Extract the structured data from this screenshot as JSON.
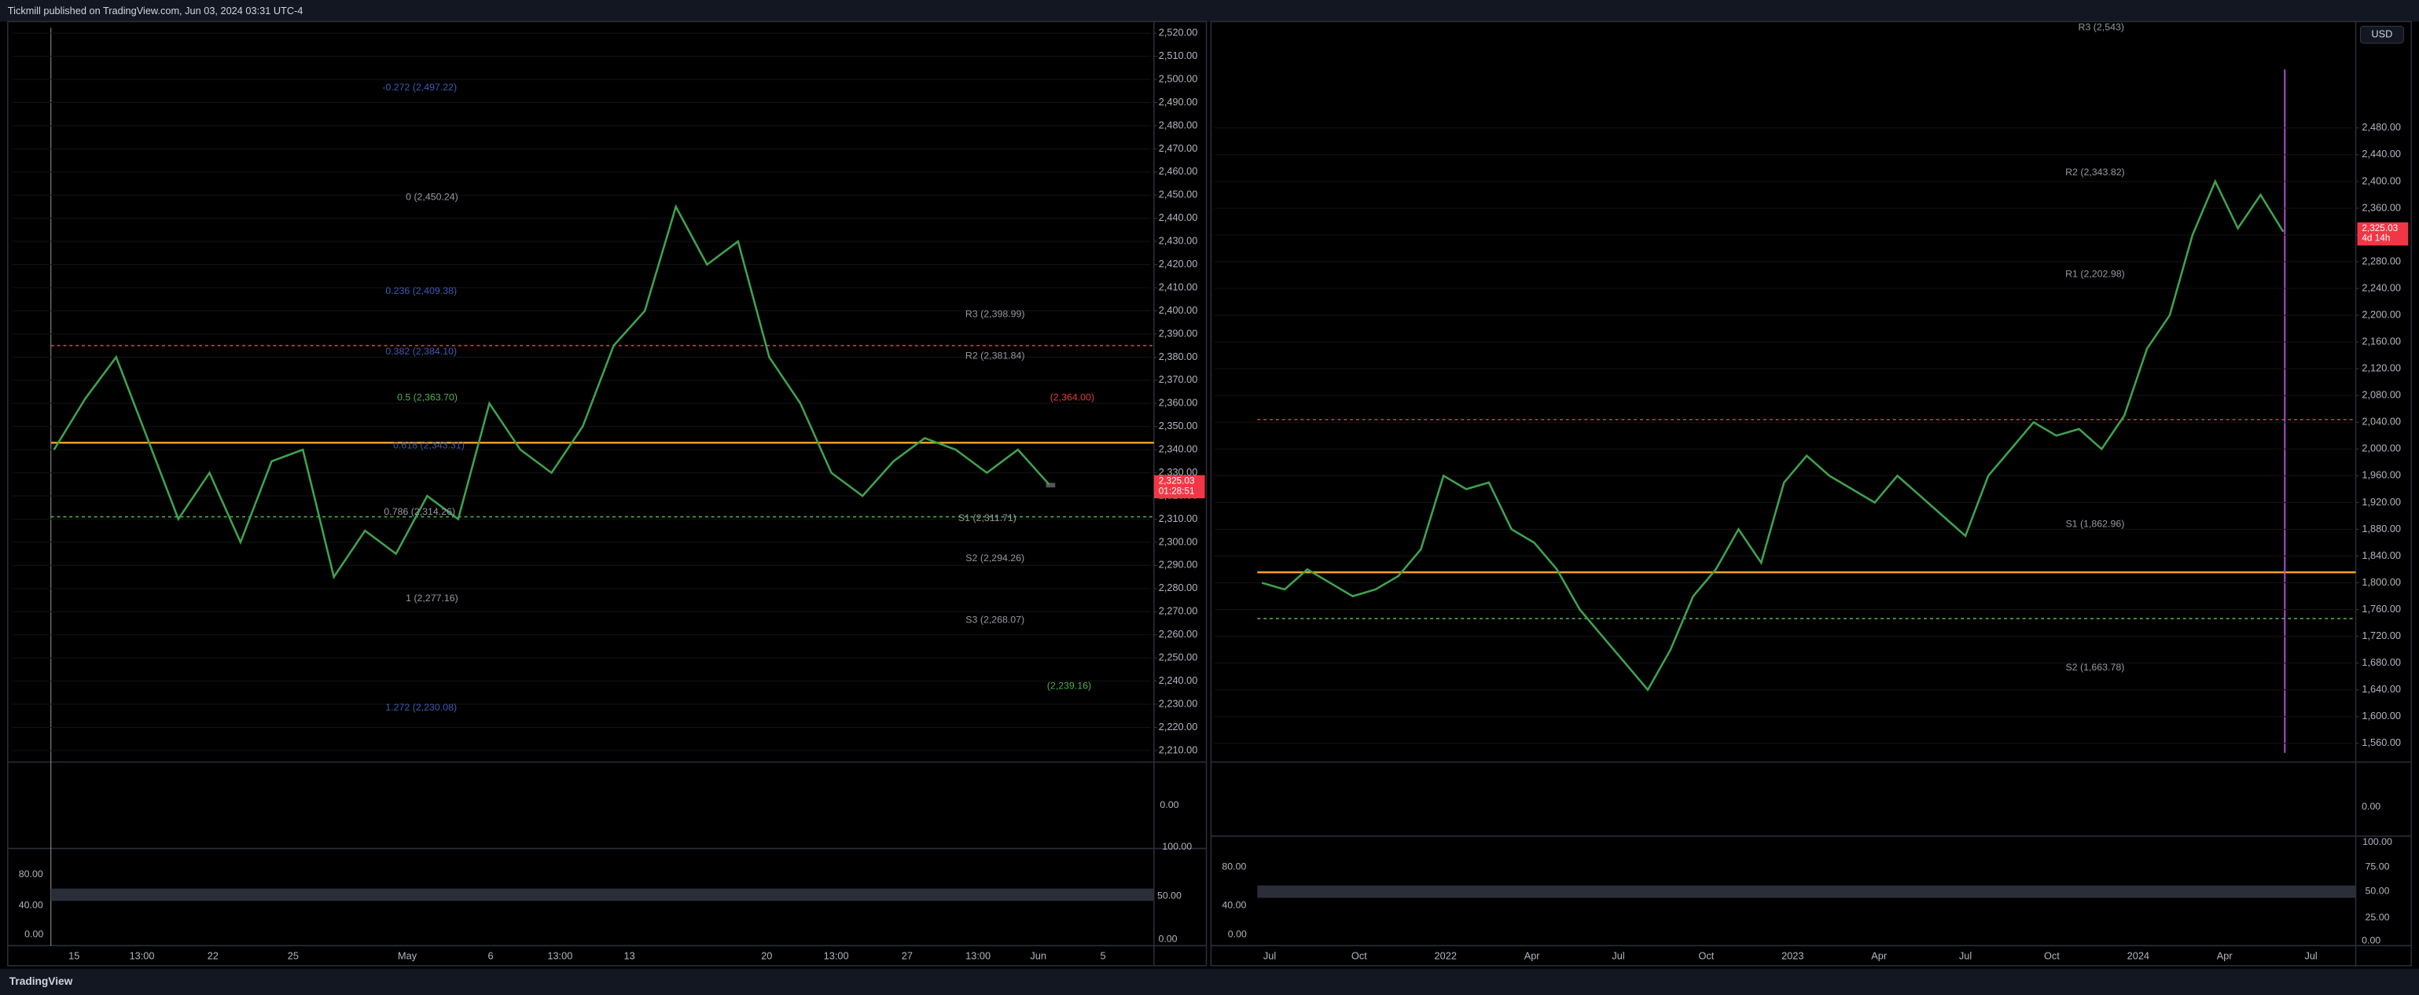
{
  "header": {
    "publisher": "Tickmill published on TradingView.com, Jun 03, 2024 03:31 UTC-4"
  },
  "footer": {
    "brand": "TradingView"
  },
  "currency": "USD",
  "chart_data": [
    {
      "type": "line",
      "color": "#3fa34d",
      "values": [
        2340,
        2362,
        2380,
        2345,
        2310,
        2330,
        2300,
        2335,
        2340,
        2285,
        2305,
        2295,
        2320,
        2310,
        2360,
        2340,
        2330,
        2350,
        2385,
        2400,
        2445,
        2420,
        2430,
        2380,
        2360,
        2330,
        2320,
        2335,
        2345,
        2340,
        2330,
        2340,
        2325
      ],
      "ylim": [
        2205,
        2525
      ],
      "yticks": [
        {
          "value": 2210,
          "label": "2,210.00"
        },
        {
          "value": 2220,
          "label": "2,220.00"
        },
        {
          "value": 2230,
          "label": "2,230.00"
        },
        {
          "value": 2240,
          "label": "2,240.00"
        },
        {
          "value": 2250,
          "label": "2,250.00"
        },
        {
          "value": 2260,
          "label": "2,260.00"
        },
        {
          "value": 2270,
          "label": "2,270.00"
        },
        {
          "value": 2280,
          "label": "2,280.00"
        },
        {
          "value": 2290,
          "label": "2,290.00"
        },
        {
          "value": 2300,
          "label": "2,300.00"
        },
        {
          "value": 2310,
          "label": "2,310.00"
        },
        {
          "value": 2320,
          "label": "2,320.00"
        },
        {
          "value": 2330,
          "label": "2,330.00"
        },
        {
          "value": 2340,
          "label": "2,340.00"
        },
        {
          "value": 2350,
          "label": "2,350.00"
        },
        {
          "value": 2360,
          "label": "2,360.00"
        },
        {
          "value": 2370,
          "label": "2,370.00"
        },
        {
          "value": 2380,
          "label": "2,380.00"
        },
        {
          "value": 2390,
          "label": "2,390.00"
        },
        {
          "value": 2400,
          "label": "2,400.00"
        },
        {
          "value": 2410,
          "label": "2,410.00"
        },
        {
          "value": 2420,
          "label": "2,420.00"
        },
        {
          "value": 2430,
          "label": "2,430.00"
        },
        {
          "value": 2440,
          "label": "2,440.00"
        },
        {
          "value": 2450,
          "label": "2,450.00"
        },
        {
          "value": 2460,
          "label": "2,460.00"
        },
        {
          "value": 2470,
          "label": "2,470.00"
        },
        {
          "value": 2480,
          "label": "2,480.00"
        },
        {
          "value": 2490,
          "label": "2,490.00"
        },
        {
          "value": 2500,
          "label": "2,500.00"
        },
        {
          "value": 2510,
          "label": "2,510.00"
        },
        {
          "value": 2520,
          "label": "2,520.00"
        }
      ],
      "time_labels": [
        "15",
        "13:00",
        "22",
        "25",
        "May",
        "6",
        "13:00",
        "13",
        "20",
        "13:00",
        "27",
        "13:00",
        "Jun",
        "5"
      ],
      "price_label": [
        "2,325.03",
        "01:28:51"
      ],
      "annotations": [
        {
          "text": "-0.272 (2,497.22)",
          "color": "#3d5bb0"
        },
        {
          "text": "0 (2,450.24)",
          "color": "#9598a1"
        },
        {
          "text": "0.236 (2,409.38)",
          "color": "#3d5bb0"
        },
        {
          "text": "0.382 (2,384.10)",
          "color": "#3d5bb0"
        },
        {
          "text": "0.5 (2,363.70)",
          "color": "#4caf50"
        },
        {
          "text": "0.618 (2,343.31)",
          "color": "#3d5bb0"
        },
        {
          "text": "0.786 (2,314.26)",
          "color": "#9598a1"
        },
        {
          "text": "1 (2,277.16)",
          "color": "#9598a1"
        },
        {
          "text": "1.272 (2,230.08)",
          "color": "#3d5bb0"
        },
        {
          "text": "R3 (2,398.99)",
          "color": "#9598a1"
        },
        {
          "text": "R2 (2,381.84)",
          "color": "#9598a1"
        },
        {
          "text": "S1 (2,311.71)",
          "color": "#9598a1"
        },
        {
          "text": "S2 (2,294.26)",
          "color": "#9598a1"
        },
        {
          "text": "S3 (2,268.07)",
          "color": "#9598a1"
        },
        {
          "text": "(2,364.00)",
          "color": "#e53935"
        },
        {
          "text": "(2,239.16)",
          "color": "#4caf50"
        }
      ],
      "oscillators": {
        "osc1": [
          "0.00"
        ],
        "osc2_axis": [
          "100.00",
          "50.00",
          "0.00"
        ],
        "osc2_levels": [
          "80.00",
          "40.00",
          "0.00"
        ]
      }
    },
    {
      "type": "line",
      "color": "#3fa34d",
      "values": [
        1800,
        1790,
        1820,
        1800,
        1780,
        1790,
        1810,
        1850,
        1960,
        1940,
        1950,
        1880,
        1860,
        1820,
        1760,
        1720,
        1680,
        1640,
        1700,
        1780,
        1820,
        1880,
        1830,
        1950,
        1990,
        1960,
        1940,
        1920,
        1960,
        1930,
        1900,
        1870,
        1960,
        2000,
        2040,
        2020,
        2030,
        2000,
        2050,
        2150,
        2200,
        2320,
        2400,
        2330,
        2380,
        2325
      ],
      "ylim": [
        1532,
        2639
      ],
      "yticks": [
        {
          "value": 1560,
          "label": "1,560.00"
        },
        {
          "value": 1600,
          "label": "1,600.00"
        },
        {
          "value": 1640,
          "label": "1,640.00"
        },
        {
          "value": 1680,
          "label": "1,680.00"
        },
        {
          "value": 1720,
          "label": "1,720.00"
        },
        {
          "value": 1760,
          "label": "1,760.00"
        },
        {
          "value": 1800,
          "label": "1,800.00"
        },
        {
          "value": 1840,
          "label": "1,840.00"
        },
        {
          "value": 1880,
          "label": "1,880.00"
        },
        {
          "value": 1920,
          "label": "1,920.00"
        },
        {
          "value": 1960,
          "label": "1,960.00"
        },
        {
          "value": 2000,
          "label": "2,000.00"
        },
        {
          "value": 2040,
          "label": "2,040.00"
        },
        {
          "value": 2080,
          "label": "2,080.00"
        },
        {
          "value": 2120,
          "label": "2,120.00"
        },
        {
          "value": 2160,
          "label": "2,160.00"
        },
        {
          "value": 2200,
          "label": "2,200.00"
        },
        {
          "value": 2240,
          "label": "2,240.00"
        },
        {
          "value": 2280,
          "label": "2,280.00"
        },
        {
          "value": 2320,
          "label": "2,320.00"
        },
        {
          "value": 2360,
          "label": "2,360.00"
        },
        {
          "value": 2400,
          "label": "2,400.00"
        },
        {
          "value": 2440,
          "label": "2,440.00"
        },
        {
          "value": 2480,
          "label": "2,480.00"
        }
      ],
      "time_labels": [
        "Jul",
        "Oct",
        "2022",
        "Apr",
        "Jul",
        "Oct",
        "2023",
        "Apr",
        "Jul",
        "Oct",
        "2024",
        "Apr",
        "Jul"
      ],
      "price_label": [
        "2,325.03",
        "4d 14h"
      ],
      "annotations": [
        {
          "text": "R3 (2,543)",
          "color": "#9598a1"
        },
        {
          "text": "R2 (2,343.82)",
          "color": "#9598a1"
        },
        {
          "text": "R1 (2,202.98)",
          "color": "#9598a1"
        },
        {
          "text": "S1 (1,862.96)",
          "color": "#9598a1"
        },
        {
          "text": "S2 (1,663.78)",
          "color": "#9598a1"
        }
      ],
      "oscillators": {
        "osc1": [
          "0.00"
        ],
        "osc2_axis": [
          "100.00",
          "75.00",
          "50.00",
          "25.00",
          "0.00"
        ],
        "osc2_levels": [
          "80.00",
          "40.00",
          "0.00"
        ]
      }
    }
  ]
}
